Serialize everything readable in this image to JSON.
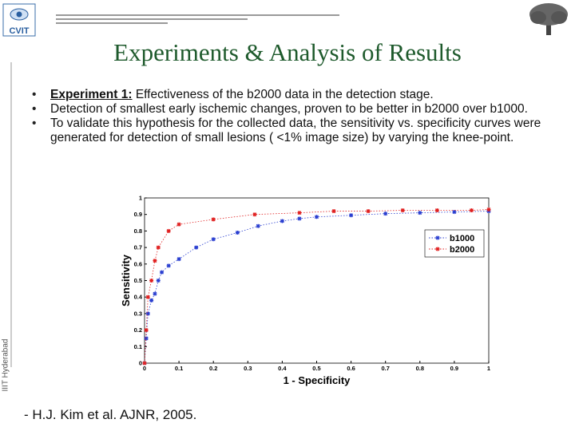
{
  "logo": {
    "text": "CVIT"
  },
  "side_text": "IIIT Hyderabad",
  "header": {
    "title": "Experiments & Analysis of Results"
  },
  "bullets": [
    {
      "label": "Experiment 1:",
      "text": " Effectiveness of the b2000 data in the detection stage."
    },
    {
      "text": "Detection of smallest early ischemic changes, proven to be better in b2000 over b1000."
    },
    {
      "text": "To validate this hypothesis for the collected data, the sensitivity vs. specificity curves were generated for detection of small lesions ( <1% image size) by varying the knee-point."
    }
  ],
  "chart_data": {
    "type": "line",
    "xlabel": "1 - Specificity",
    "ylabel": "Sensitivity",
    "xlim": [
      0,
      1
    ],
    "ylim": [
      0,
      1
    ],
    "xticks": [
      0,
      0.1,
      0.2,
      0.3,
      0.4,
      0.5,
      0.6,
      0.7,
      0.8,
      0.9,
      1
    ],
    "yticks": [
      0,
      0.1,
      0.2,
      0.3,
      0.4,
      0.5,
      0.6,
      0.7,
      0.8,
      0.9,
      1
    ],
    "legend": "upper right",
    "series": [
      {
        "name": "b1000",
        "color": "#2a3fd0",
        "x": [
          0,
          0.005,
          0.01,
          0.02,
          0.03,
          0.04,
          0.05,
          0.07,
          0.1,
          0.15,
          0.2,
          0.27,
          0.33,
          0.4,
          0.45,
          0.5,
          0.6,
          0.7,
          0.8,
          0.9,
          1
        ],
        "values": [
          0,
          0.15,
          0.3,
          0.38,
          0.42,
          0.5,
          0.55,
          0.59,
          0.63,
          0.7,
          0.75,
          0.79,
          0.83,
          0.86,
          0.875,
          0.885,
          0.895,
          0.905,
          0.91,
          0.915,
          0.92
        ]
      },
      {
        "name": "b2000",
        "color": "#e02020",
        "x": [
          0,
          0.005,
          0.01,
          0.02,
          0.03,
          0.04,
          0.07,
          0.1,
          0.2,
          0.32,
          0.45,
          0.55,
          0.65,
          0.75,
          0.85,
          0.95,
          1
        ],
        "values": [
          0,
          0.2,
          0.4,
          0.5,
          0.62,
          0.7,
          0.8,
          0.84,
          0.87,
          0.9,
          0.91,
          0.92,
          0.92,
          0.925,
          0.925,
          0.925,
          0.93
        ]
      }
    ]
  },
  "citation": "- H.J. Kim et al. AJNR, 2005."
}
